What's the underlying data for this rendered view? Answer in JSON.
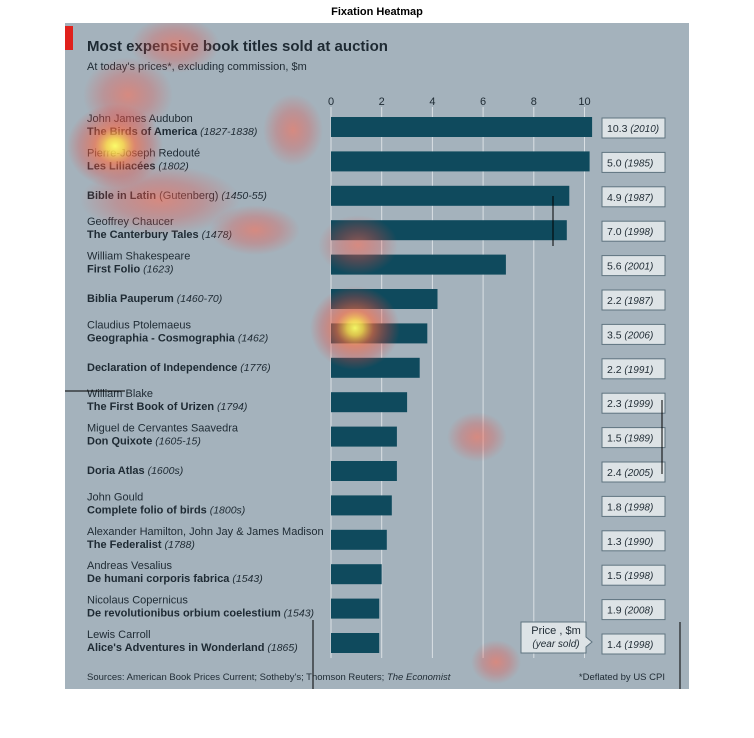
{
  "figure_title": "Fixation Heatmap",
  "colors": {
    "panel_bg": "#a4b2bc",
    "bar": "#0f4a5d",
    "accent": "#e0211c",
    "value_box_bg": "#dde3e6",
    "value_box_border": "#5f7480",
    "text": "#1e2a33"
  },
  "chart_data": {
    "type": "bar",
    "orientation": "horizontal",
    "title": "Most expensive book titles sold at auction",
    "subtitle": "At today's prices*, excluding commission, $m",
    "xlim": [
      0,
      10.3
    ],
    "xticks": [
      0,
      2,
      4,
      6,
      8,
      10
    ],
    "grid": true,
    "items": [
      {
        "line1": "John James Audubon",
        "line1_bold": false,
        "title": "The Birds of America",
        "extra": "",
        "year": "(1827-1838)",
        "value": 10.3,
        "box_value": "10.3",
        "box_year": "(2010)"
      },
      {
        "line1": "Pierre-Joseph Redouté",
        "line1_bold": false,
        "title": "Les Liliacées",
        "extra": "",
        "year": "(1802)",
        "value": 10.2,
        "box_value": "5.0",
        "box_year": "(1985)"
      },
      {
        "line1": "",
        "line1_bold": false,
        "title": "Bible in Latin",
        "extra": " (Gutenberg)",
        "year": "(1450-55)",
        "value": 9.4,
        "box_value": "4.9",
        "box_year": "(1987)"
      },
      {
        "line1": "Geoffrey Chaucer",
        "line1_bold": false,
        "title": "The Canterbury Tales",
        "extra": "",
        "year": "(1478)",
        "value": 9.3,
        "box_value": "7.0",
        "box_year": "(1998)"
      },
      {
        "line1": "William Shakespeare",
        "line1_bold": false,
        "title": "First Folio",
        "extra": "",
        "year": "(1623)",
        "value": 6.9,
        "box_value": "5.6",
        "box_year": "(2001)"
      },
      {
        "line1": "",
        "line1_bold": false,
        "title": "Biblia Pauperum",
        "extra": "",
        "year": "(1460-70)",
        "value": 4.2,
        "box_value": "2.2",
        "box_year": "(1987)"
      },
      {
        "line1": "Claudius Ptolemaeus",
        "line1_bold": false,
        "title": "Geographia - Cosmographia",
        "extra": "",
        "year": "(1462)",
        "value": 3.8,
        "box_value": "3.5",
        "box_year": "(2006)"
      },
      {
        "line1": "",
        "line1_bold": false,
        "title": "Declaration of Independence",
        "extra": "",
        "year": "(1776)",
        "value": 3.5,
        "box_value": "2.2",
        "box_year": "(1991)"
      },
      {
        "line1": "William Blake",
        "line1_bold": false,
        "title": "The First Book of Urizen",
        "extra": "",
        "year": "(1794)",
        "value": 3.0,
        "box_value": "2.3",
        "box_year": "(1999)"
      },
      {
        "line1": "Miguel de Cervantes Saavedra",
        "line1_bold": false,
        "title": "Don Quixote",
        "extra": "",
        "year": "(1605-15)",
        "value": 2.6,
        "box_value": "1.5",
        "box_year": "(1989)"
      },
      {
        "line1": "",
        "line1_bold": false,
        "title": "Doria Atlas",
        "extra": "",
        "year": "(1600s)",
        "value": 2.6,
        "box_value": "2.4",
        "box_year": "(2005)"
      },
      {
        "line1": "John Gould",
        "line1_bold": false,
        "title": "Complete folio of birds",
        "extra": "",
        "year": "(1800s)",
        "value": 2.4,
        "box_value": "1.8",
        "box_year": "(1998)"
      },
      {
        "line1": "Alexander Hamilton, John Jay & James Madison",
        "line1_bold": false,
        "title": "The Federalist",
        "extra": "",
        "year": "(1788)",
        "value": 2.2,
        "box_value": "1.3",
        "box_year": "(1990)"
      },
      {
        "line1": "Andreas Vesalius",
        "line1_bold": false,
        "title": "De humani corporis fabrica",
        "extra": "",
        "year": "(1543)",
        "value": 2.0,
        "box_value": "1.5",
        "box_year": "(1998)"
      },
      {
        "line1": "Nicolaus Copernicus",
        "line1_bold": false,
        "title": "De revolutionibus orbium coelestium",
        "extra": "",
        "year": "(1543)",
        "value": 1.9,
        "box_value": "1.9",
        "box_year": "(2008)"
      },
      {
        "line1": "Lewis Carroll",
        "line1_bold": false,
        "title": "Alice's Adventures in Wonderland",
        "extra": "",
        "year": "(1865)",
        "value": 1.9,
        "box_value": "1.4",
        "box_year": "(1998)"
      }
    ],
    "box_legend": {
      "line1": "Price , $m",
      "line2": "(year sold)"
    },
    "footer_sources": "Sources: American Book Prices Current; Sotheby's; Thomson Reuters; ",
    "footer_sources_italic": "The Economist",
    "footer_note": "*Deflated by US CPI"
  }
}
